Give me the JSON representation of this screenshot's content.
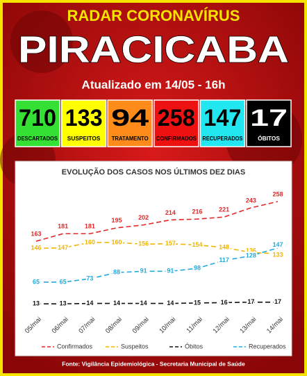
{
  "header": {
    "top": "RADAR CORONAVÍRUS",
    "city": "PIRACICABA",
    "updated": "Atualizado em 14/05 - 16h"
  },
  "summary": [
    {
      "value": 710,
      "label": "DESCARTADOS",
      "color": "#33e033"
    },
    {
      "value": 133,
      "label": "SUSPEITOS",
      "color": "#ffff00"
    },
    {
      "value": 94,
      "label": "TRATAMENTO",
      "color": "#ff8c1a"
    },
    {
      "value": 258,
      "label": "CONFIRMADOS",
      "color": "#ee1111"
    },
    {
      "value": 147,
      "label": "RECUPERADOS",
      "color": "#22e6f0"
    },
    {
      "value": 17,
      "label": "ÓBITOS",
      "color": "#000000"
    }
  ],
  "chart_data": {
    "type": "line",
    "title": "EVOLUÇÃO DOS CASOS NOS ÚLTIMOS DEZ DIAS",
    "categories": [
      "05/mai",
      "06/mai",
      "07/mai",
      "08/mai",
      "09/mai",
      "10/mai",
      "11/mai",
      "12/mai",
      "13/mai",
      "14/mai"
    ],
    "series": [
      {
        "name": "Confirmados",
        "color": "#e02828",
        "values": [
          163,
          181,
          181,
          195,
          202,
          214,
          216,
          221,
          243,
          258
        ]
      },
      {
        "name": "Suspeitos",
        "color": "#f0b400",
        "values": [
          146,
          147,
          160,
          160,
          156,
          157,
          154,
          148,
          136,
          133
        ]
      },
      {
        "name": "Óbitos",
        "color": "#111111",
        "values": [
          13,
          13,
          14,
          14,
          14,
          14,
          15,
          16,
          17,
          17
        ]
      },
      {
        "name": "Recuperados",
        "color": "#22aadd",
        "values": [
          65,
          65,
          73,
          88,
          91,
          91,
          98,
          117,
          128,
          147
        ]
      }
    ]
  },
  "footer": "Fonte: Vigilância Epidemiológica - Secretaria Municipal de Saúde"
}
